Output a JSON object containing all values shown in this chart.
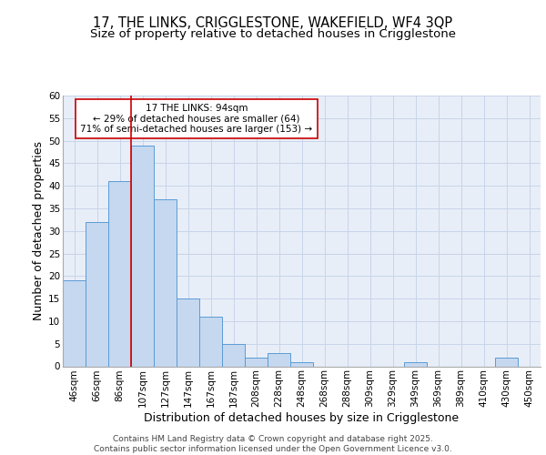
{
  "title_line1": "17, THE LINKS, CRIGGLESTONE, WAKEFIELD, WF4 3QP",
  "title_line2": "Size of property relative to detached houses in Crigglestone",
  "xlabel": "Distribution of detached houses by size in Crigglestone",
  "ylabel": "Number of detached properties",
  "bar_labels": [
    "46sqm",
    "66sqm",
    "86sqm",
    "107sqm",
    "127sqm",
    "147sqm",
    "167sqm",
    "187sqm",
    "208sqm",
    "228sqm",
    "248sqm",
    "268sqm",
    "288sqm",
    "309sqm",
    "329sqm",
    "349sqm",
    "369sqm",
    "389sqm",
    "410sqm",
    "430sqm",
    "450sqm"
  ],
  "bar_values": [
    19,
    32,
    41,
    49,
    37,
    15,
    11,
    5,
    2,
    3,
    1,
    0,
    0,
    0,
    0,
    1,
    0,
    0,
    0,
    2,
    0
  ],
  "bar_color": "#c5d8f0",
  "bar_edge_color": "#5b9bd5",
  "grid_color": "#c8d4e8",
  "background_color": "#e8eef8",
  "vline_color": "#cc0000",
  "annotation_text": "17 THE LINKS: 94sqm\n← 29% of detached houses are smaller (64)\n71% of semi-detached houses are larger (153) →",
  "annotation_box_color": "white",
  "annotation_box_edge": "#cc0000",
  "ylim": [
    0,
    60
  ],
  "yticks": [
    0,
    5,
    10,
    15,
    20,
    25,
    30,
    35,
    40,
    45,
    50,
    55,
    60
  ],
  "footer_text": "Contains HM Land Registry data © Crown copyright and database right 2025.\nContains public sector information licensed under the Open Government Licence v3.0.",
  "title_fontsize": 10.5,
  "subtitle_fontsize": 9.5,
  "axis_label_fontsize": 9,
  "tick_fontsize": 7.5,
  "annotation_fontsize": 7.5,
  "footer_fontsize": 6.5
}
